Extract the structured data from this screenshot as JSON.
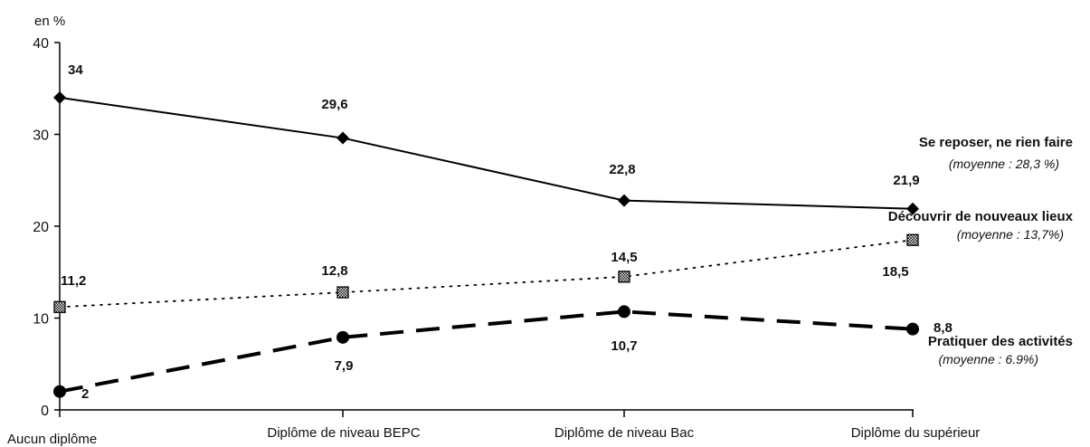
{
  "chart_data": {
    "type": "line",
    "ylabel": "en %",
    "ylim": [
      0,
      40
    ],
    "yticks": [
      0,
      10,
      20,
      30,
      40
    ],
    "categories": [
      "Aucun diplôme",
      "Diplôme de niveau BEPC",
      "Diplôme de niveau Bac",
      "Diplôme du supérieur"
    ],
    "series": [
      {
        "name": "Se reposer, ne rien faire",
        "note": "(moyenne : 28,3 %)",
        "values": [
          34,
          29.6,
          22.8,
          21.9
        ],
        "labels": [
          "34",
          "29,6",
          "22,8",
          "21,9"
        ],
        "style": "solid",
        "marker": "diamond",
        "color": "#000000"
      },
      {
        "name": "Découvrir de nouveaux lieux",
        "note": "(moyenne : 13,7%)",
        "values": [
          11.2,
          12.8,
          14.5,
          18.5
        ],
        "labels": [
          "11,2",
          "12,8",
          "14,5",
          "18,5"
        ],
        "style": "dotted",
        "marker": "square",
        "color": "#000000"
      },
      {
        "name": "Pratiquer des activités",
        "note": "(moyenne : 6.9%)",
        "values": [
          2,
          7.9,
          10.7,
          8.8
        ],
        "labels": [
          "2",
          "7,9",
          "10,7",
          "8,8"
        ],
        "style": "dashed",
        "marker": "circle",
        "color": "#000000"
      }
    ],
    "grid": false
  }
}
